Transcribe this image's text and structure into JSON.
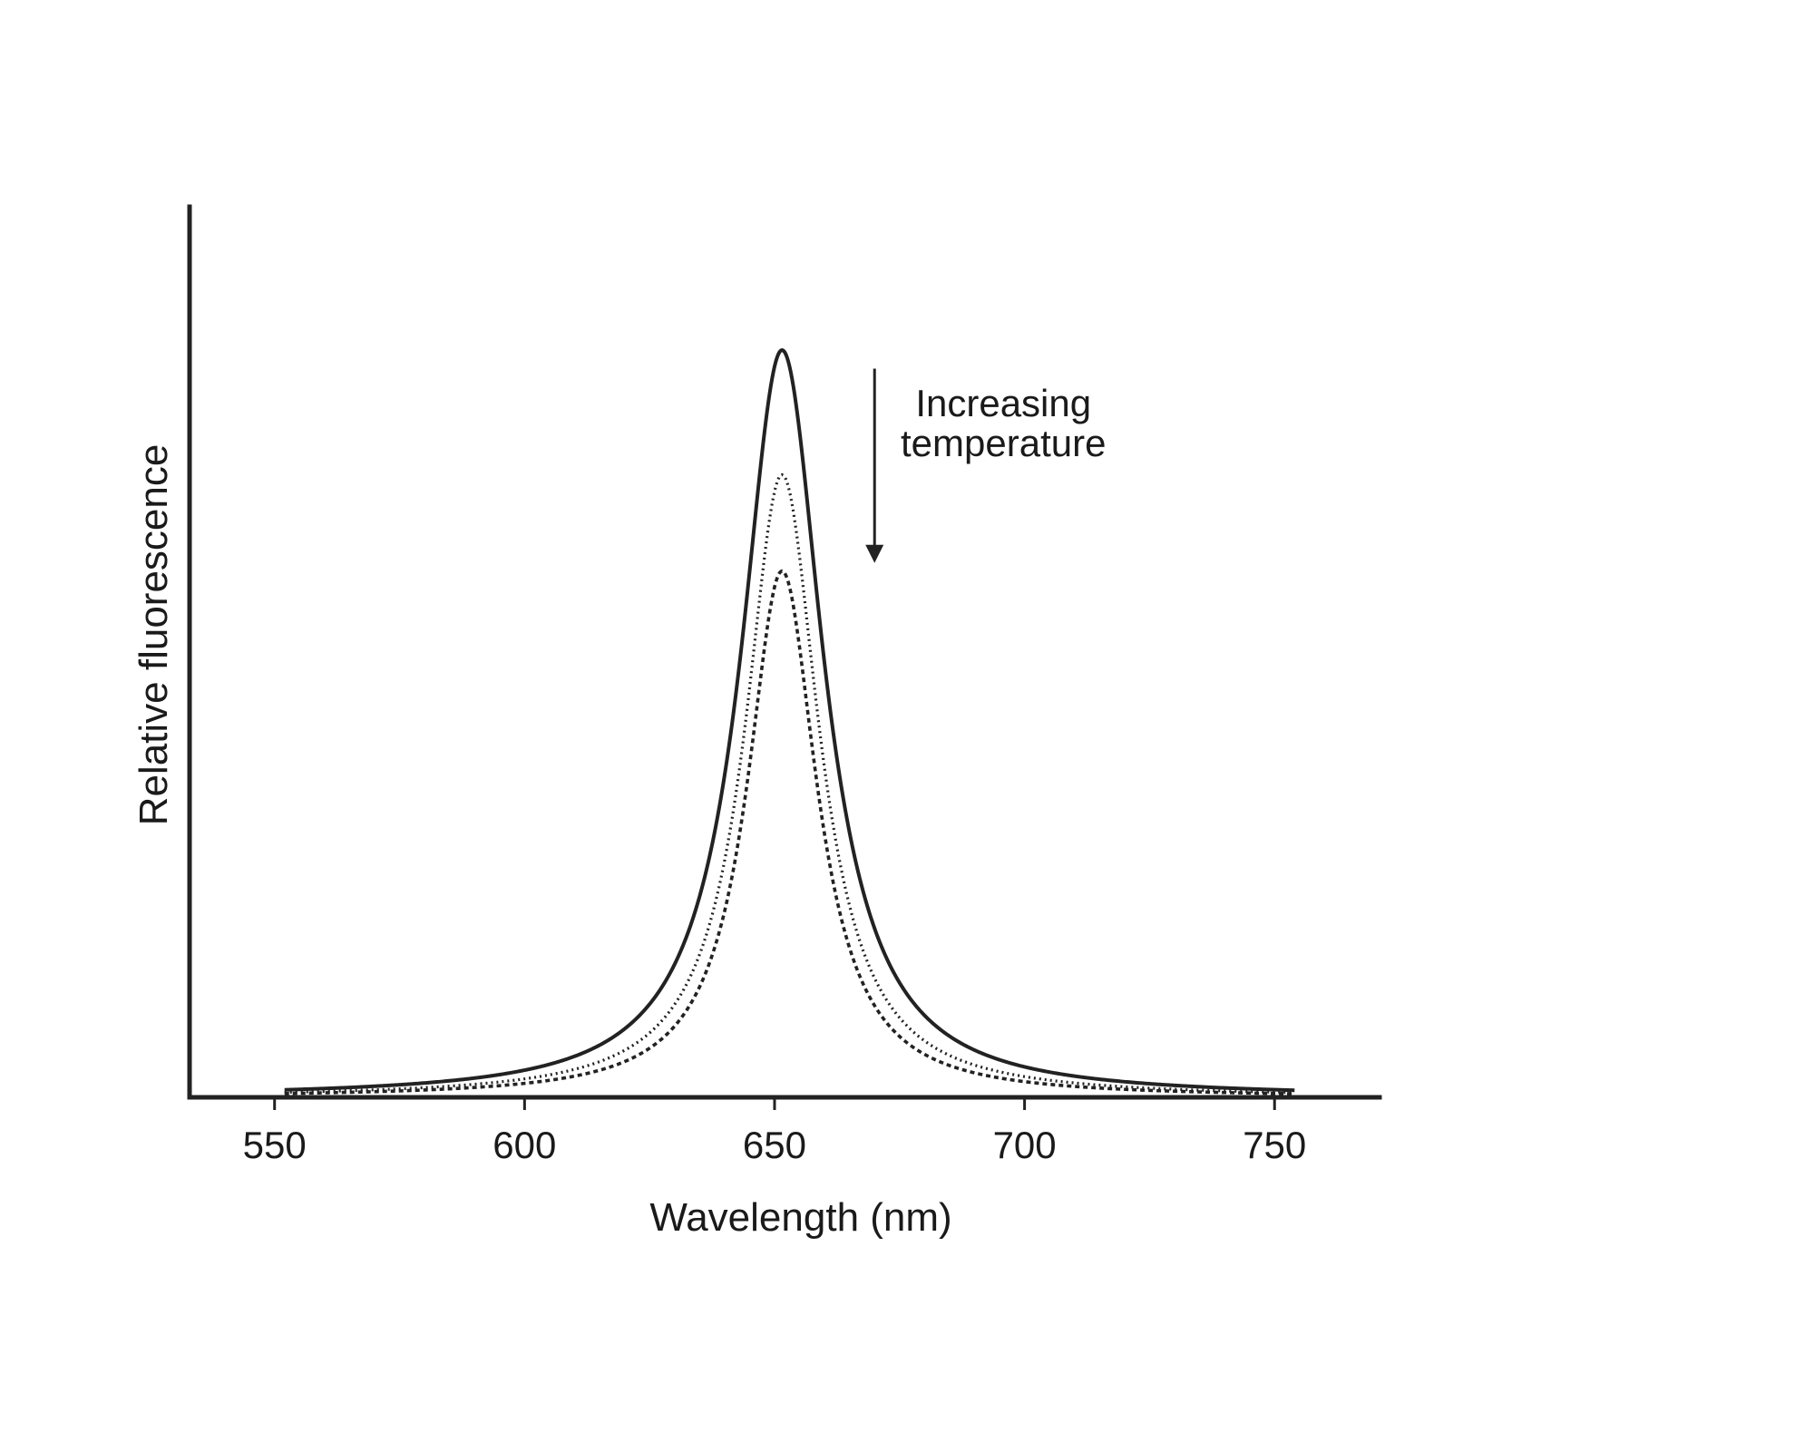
{
  "chart_data": {
    "type": "line",
    "title": "",
    "xlabel": "Wavelength (nm)",
    "ylabel": "Relative fluorescence",
    "xlim": [
      533,
      771
    ],
    "ylim": [
      0,
      1.1
    ],
    "xticks": [
      550,
      600,
      650,
      700,
      750
    ],
    "xtick_labels": [
      "550",
      "600",
      "650",
      "700",
      "750"
    ],
    "yticks_shown": false,
    "grid": false,
    "legend": "none",
    "x_range": [
      552,
      754
    ],
    "annotation": {
      "lines": [
        "Increasing",
        "temperature"
      ],
      "arrow_direction": "down",
      "arrow_x": 670,
      "arrow_y": [
        0.9,
        0.66
      ]
    },
    "series": [
      {
        "style": "solid",
        "peak_x": 651.5,
        "peak_y": 0.923,
        "hwhm": 10
      },
      {
        "style": "dotted",
        "peak_x": 651.5,
        "peak_y": 0.769,
        "hwhm": 9
      },
      {
        "style": "dashed",
        "peak_x": 651.5,
        "peak_y": 0.65,
        "hwhm": 8.5
      }
    ],
    "colors": {
      "ink": "#222222",
      "background": "#ffffff"
    }
  }
}
